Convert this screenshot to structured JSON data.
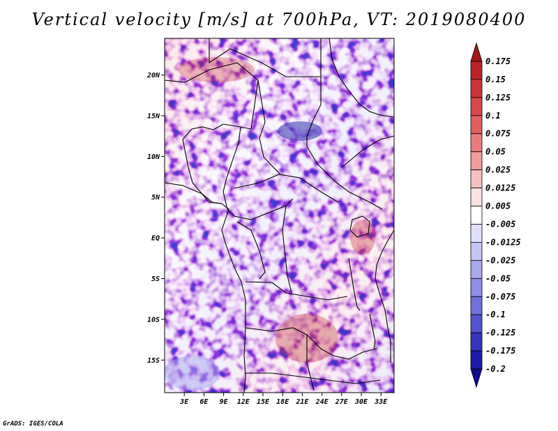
{
  "title": "Vertical velocity [m/s] at 700hPa, VT: 2019080400",
  "credit": "GrADS: IGES/COLA",
  "map": {
    "lon_range": [
      0,
      35
    ],
    "lat_range": [
      -19,
      24.5
    ],
    "lon_ticks": [
      "3E",
      "6E",
      "9E",
      "12E",
      "15E",
      "18E",
      "21E",
      "24E",
      "27E",
      "30E",
      "33E"
    ],
    "lon_tick_values": [
      3,
      6,
      9,
      12,
      15,
      18,
      21,
      24,
      27,
      30,
      33
    ],
    "lat_ticks": [
      "20N",
      "15N",
      "10N",
      "5N",
      "EQ",
      "5S",
      "10S",
      "15S"
    ],
    "lat_tick_values": [
      20,
      15,
      10,
      5,
      0,
      -5,
      -10,
      -15
    ]
  },
  "colorbar": {
    "labels": [
      "0.175",
      "0.15",
      "0.125",
      "0.1",
      "0.075",
      "0.05",
      "0.025",
      "0.0125",
      "0.005",
      "-0.005",
      "-0.0125",
      "-0.025",
      "-0.05",
      "-0.075",
      "-0.1",
      "-0.125",
      "-0.175",
      "-0.2"
    ],
    "colors": [
      "#a01818",
      "#b82525",
      "#cc3535",
      "#d84848",
      "#e06060",
      "#e87c7c",
      "#f09c9c",
      "#f7c0c0",
      "#fce2e2",
      "#ffffff",
      "#e0e0fc",
      "#c4c4f6",
      "#a8a8ee",
      "#8e8ee6",
      "#7272dc",
      "#5454ce",
      "#3434bc",
      "#1c1ca6",
      "#100e90"
    ]
  }
}
